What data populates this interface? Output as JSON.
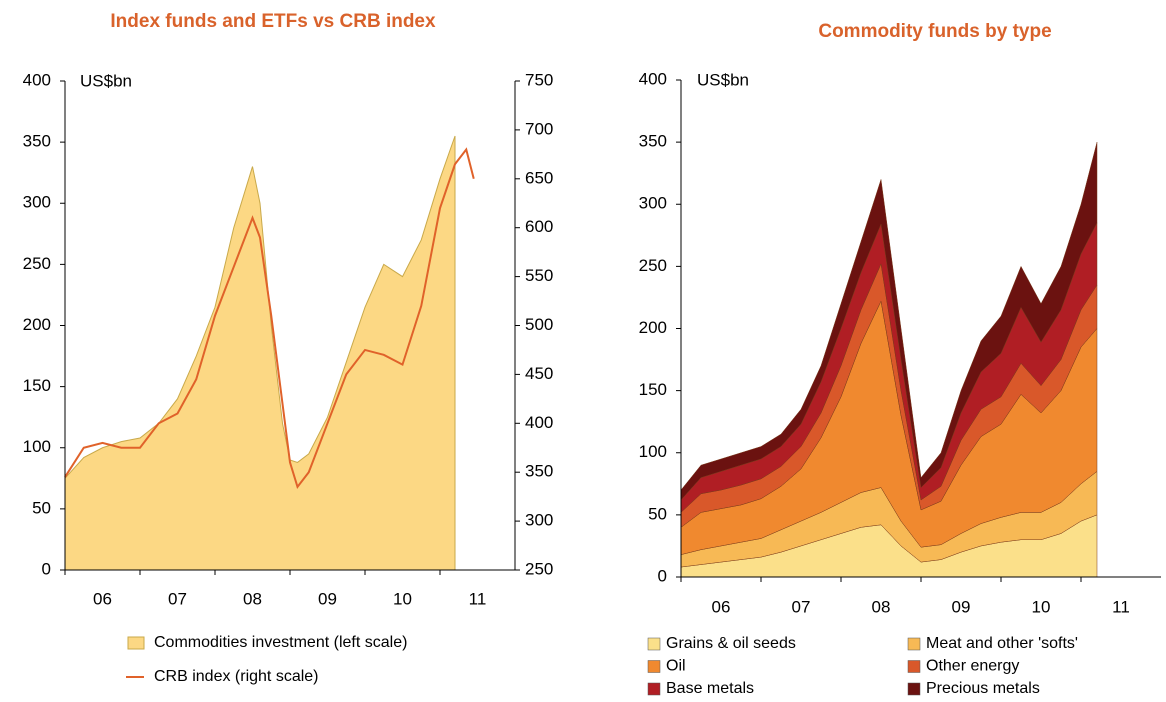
{
  "chart_data": [
    {
      "type": "combo",
      "title": "Index funds and ETFs vs CRB index",
      "ylabel": "US$bn",
      "x": [
        6.0,
        6.25,
        6.5,
        6.75,
        7.0,
        7.25,
        7.5,
        7.75,
        8.0,
        8.25,
        8.5,
        8.6,
        8.75,
        8.9,
        9.0,
        9.1,
        9.25,
        9.5,
        9.75,
        10.0,
        10.25,
        10.5,
        10.75,
        11.0,
        11.2,
        11.35,
        11.45
      ],
      "series": [
        {
          "name": "Commodities investment (left scale)",
          "type": "area",
          "color": "#fcd884",
          "values": [
            75,
            92,
            100,
            105,
            108,
            120,
            140,
            175,
            215,
            280,
            330,
            300,
            200,
            120,
            90,
            88,
            95,
            125,
            170,
            215,
            250,
            240,
            270,
            320,
            355,
            null,
            null
          ]
        },
        {
          "name": "CRB index (right scale)",
          "type": "line",
          "axis": "y2",
          "color": "#e0622a",
          "values": [
            345,
            375,
            380,
            375,
            375,
            400,
            410,
            445,
            510,
            560,
            610,
            590,
            510,
            420,
            360,
            335,
            350,
            400,
            450,
            475,
            470,
            460,
            520,
            620,
            665,
            680,
            650
          ]
        }
      ],
      "xlim": [
        6,
        12
      ],
      "xticks": [
        {
          "value": 6,
          "label": "06"
        },
        {
          "value": 7,
          "label": "07"
        },
        {
          "value": 8,
          "label": "08"
        },
        {
          "value": 9,
          "label": "09"
        },
        {
          "value": 10,
          "label": "10"
        },
        {
          "value": 11,
          "label": "11"
        }
      ],
      "ylim": [
        0,
        400
      ],
      "yticks": [
        0,
        50,
        100,
        150,
        200,
        250,
        300,
        350,
        400
      ],
      "y2lim": [
        250,
        750
      ],
      "y2ticks": [
        250,
        300,
        350,
        400,
        450,
        500,
        550,
        600,
        650,
        700,
        750
      ]
    },
    {
      "type": "stacked-area",
      "title": "Commodity funds by type",
      "ylabel": "US$bn",
      "x": [
        6.0,
        6.25,
        6.5,
        6.75,
        7.0,
        7.25,
        7.5,
        7.75,
        8.0,
        8.25,
        8.5,
        8.75,
        9.0,
        9.25,
        9.5,
        9.75,
        10.0,
        10.25,
        10.5,
        10.75,
        11.0,
        11.2
      ],
      "series": [
        {
          "name": "Grains & oil seeds",
          "color": "#fbe08a",
          "values": [
            8,
            10,
            12,
            14,
            16,
            20,
            25,
            30,
            35,
            40,
            42,
            25,
            12,
            14,
            20,
            25,
            28,
            30,
            30,
            35,
            45,
            50
          ]
        },
        {
          "name": "Meat and other 'softs'",
          "color": "#f7b955",
          "values": [
            10,
            12,
            13,
            14,
            15,
            18,
            20,
            22,
            25,
            28,
            30,
            20,
            12,
            12,
            15,
            18,
            20,
            22,
            22,
            25,
            30,
            35
          ]
        },
        {
          "name": "Oil",
          "color": "#f0892f",
          "values": [
            22,
            30,
            30,
            30,
            32,
            35,
            42,
            60,
            85,
            120,
            150,
            85,
            30,
            35,
            55,
            70,
            75,
            95,
            80,
            90,
            110,
            115
          ]
        },
        {
          "name": "Other energy",
          "color": "#d9582a",
          "values": [
            12,
            15,
            15,
            16,
            16,
            16,
            18,
            20,
            25,
            27,
            30,
            20,
            8,
            12,
            20,
            22,
            22,
            25,
            22,
            25,
            30,
            35
          ]
        },
        {
          "name": "Base metals",
          "color": "#b01e24",
          "values": [
            10,
            13,
            15,
            16,
            16,
            16,
            18,
            25,
            30,
            30,
            32,
            25,
            10,
            15,
            22,
            30,
            35,
            45,
            35,
            40,
            45,
            50
          ]
        },
        {
          "name": "Precious metals",
          "color": "#6b1210",
          "values": [
            8,
            10,
            10,
            10,
            10,
            10,
            12,
            13,
            20,
            25,
            36,
            25,
            8,
            12,
            18,
            25,
            30,
            33,
            31,
            35,
            40,
            65
          ]
        }
      ],
      "xlim": [
        6,
        12
      ],
      "xticks": [
        {
          "value": 6,
          "label": "06"
        },
        {
          "value": 7,
          "label": "07"
        },
        {
          "value": 8,
          "label": "08"
        },
        {
          "value": 9,
          "label": "09"
        },
        {
          "value": 10,
          "label": "10"
        },
        {
          "value": 11,
          "label": "11"
        }
      ],
      "ylim": [
        0,
        400
      ],
      "yticks": [
        0,
        50,
        100,
        150,
        200,
        250,
        300,
        350,
        400
      ]
    }
  ]
}
